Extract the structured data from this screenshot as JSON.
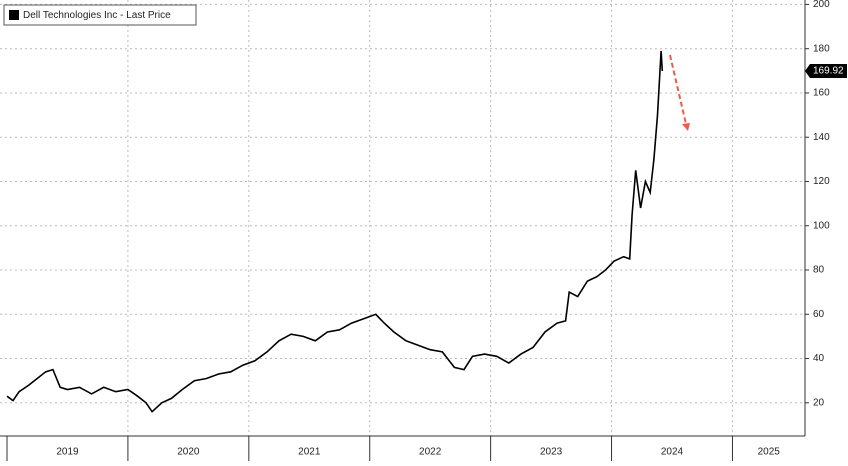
{
  "chart_data": {
    "type": "line",
    "x": [
      2019.0,
      2019.05,
      2019.1,
      2019.18,
      2019.25,
      2019.32,
      2019.38,
      2019.44,
      2019.5,
      2019.6,
      2019.7,
      2019.8,
      2019.9,
      2020.0,
      2020.08,
      2020.15,
      2020.2,
      2020.28,
      2020.36,
      2020.45,
      2020.55,
      2020.65,
      2020.75,
      2020.85,
      2020.95,
      2021.05,
      2021.15,
      2021.25,
      2021.35,
      2021.45,
      2021.55,
      2021.65,
      2021.75,
      2021.85,
      2021.95,
      2022.05,
      2022.12,
      2022.2,
      2022.3,
      2022.4,
      2022.5,
      2022.6,
      2022.7,
      2022.78,
      2022.85,
      2022.95,
      2023.05,
      2023.15,
      2023.25,
      2023.35,
      2023.45,
      2023.55,
      2023.62,
      2023.65,
      2023.72,
      2023.8,
      2023.88,
      2023.95,
      2024.02,
      2024.1,
      2024.15,
      2024.17,
      2024.2,
      2024.24,
      2024.28,
      2024.32,
      2024.35,
      2024.38,
      2024.41,
      2024.42
    ],
    "series": [
      {
        "name": "Dell Technologies Inc - Last Price",
        "color": "#000000",
        "values": [
          23,
          21,
          25,
          28,
          31,
          34,
          35,
          27,
          26,
          27,
          24,
          27,
          25,
          26,
          23,
          20,
          16,
          20,
          22,
          26,
          30,
          31,
          33,
          34,
          37,
          39,
          43,
          48,
          51,
          50,
          48,
          52,
          53,
          56,
          58,
          60,
          56,
          52,
          48,
          46,
          44,
          43,
          36,
          35,
          41,
          42,
          41,
          38,
          42,
          45,
          52,
          56,
          57,
          70,
          68,
          75,
          77,
          80,
          84,
          86,
          85,
          105,
          125,
          108,
          120,
          115,
          130,
          150,
          179,
          169.92
        ]
      }
    ],
    "xlim": [
      2019.0,
      2025.6
    ],
    "xticks": [
      2019,
      2020,
      2021,
      2022,
      2023,
      2024,
      2025
    ],
    "ylim": [
      5,
      202
    ],
    "yticks": [
      20,
      40,
      60,
      80,
      100,
      120,
      140,
      160,
      180,
      200
    ],
    "grid": true,
    "legend": "upper left"
  }
}
